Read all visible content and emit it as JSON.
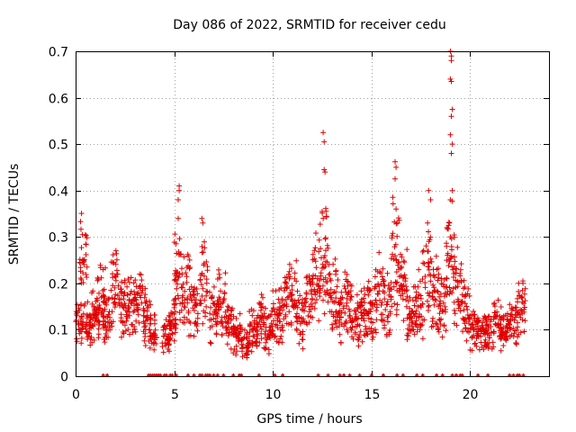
{
  "chart_data": {
    "type": "scatter",
    "title": "Day 086 of 2022, SRMTID for receiver cedu",
    "xlabel": "GPS time / hours",
    "ylabel": "SRMTID / TECUs",
    "xlim": [
      0,
      24
    ],
    "ylim": [
      0,
      0.7
    ],
    "xticks": [
      0,
      5,
      10,
      15,
      20
    ],
    "yticks": [
      0,
      0.1,
      0.2,
      0.3,
      0.4,
      0.5,
      0.6,
      0.7
    ],
    "grid": true,
    "marker": "+",
    "series": [
      {
        "name": "SRMTID",
        "color": "#e00000",
        "cluster_centers": [
          [
            0.2,
            0.13
          ],
          [
            0.4,
            0.24
          ],
          [
            0.7,
            0.1
          ],
          [
            1.0,
            0.14
          ],
          [
            1.3,
            0.16
          ],
          [
            1.6,
            0.12
          ],
          [
            2.0,
            0.19
          ],
          [
            2.4,
            0.14
          ],
          [
            2.8,
            0.15
          ],
          [
            3.2,
            0.17
          ],
          [
            3.6,
            0.13
          ],
          [
            3.9,
            0.09
          ],
          [
            4.6,
            0.08
          ],
          [
            4.9,
            0.12
          ],
          [
            5.2,
            0.22
          ],
          [
            5.6,
            0.18
          ],
          [
            6.0,
            0.15
          ],
          [
            6.5,
            0.2
          ],
          [
            7.0,
            0.14
          ],
          [
            7.4,
            0.16
          ],
          [
            7.8,
            0.11
          ],
          [
            8.2,
            0.09
          ],
          [
            8.6,
            0.07
          ],
          [
            9.0,
            0.1
          ],
          [
            9.4,
            0.12
          ],
          [
            9.8,
            0.1
          ],
          [
            10.2,
            0.13
          ],
          [
            10.6,
            0.15
          ],
          [
            11.0,
            0.17
          ],
          [
            11.4,
            0.12
          ],
          [
            11.8,
            0.16
          ],
          [
            12.2,
            0.21
          ],
          [
            12.6,
            0.24
          ],
          [
            13.0,
            0.17
          ],
          [
            13.4,
            0.14
          ],
          [
            13.8,
            0.16
          ],
          [
            14.2,
            0.12
          ],
          [
            14.6,
            0.13
          ],
          [
            15.0,
            0.14
          ],
          [
            15.4,
            0.18
          ],
          [
            15.8,
            0.15
          ],
          [
            16.2,
            0.26
          ],
          [
            16.6,
            0.19
          ],
          [
            17.0,
            0.13
          ],
          [
            17.4,
            0.16
          ],
          [
            17.8,
            0.22
          ],
          [
            18.2,
            0.18
          ],
          [
            18.6,
            0.15
          ],
          [
            19.0,
            0.26
          ],
          [
            19.4,
            0.2
          ],
          [
            19.8,
            0.14
          ],
          [
            20.2,
            0.1
          ],
          [
            20.6,
            0.1
          ],
          [
            21.0,
            0.09
          ],
          [
            21.4,
            0.11
          ],
          [
            21.8,
            0.1
          ],
          [
            22.2,
            0.12
          ],
          [
            22.6,
            0.15
          ]
        ],
        "spikes": [
          [
            5.25,
            0.41
          ],
          [
            5.25,
            0.4
          ],
          [
            5.2,
            0.38
          ],
          [
            5.2,
            0.34
          ],
          [
            6.4,
            0.34
          ],
          [
            6.45,
            0.33
          ],
          [
            12.55,
            0.525
          ],
          [
            12.6,
            0.505
          ],
          [
            12.6,
            0.445
          ],
          [
            12.65,
            0.44
          ],
          [
            12.5,
            0.355
          ],
          [
            12.55,
            0.34
          ],
          [
            16.2,
            0.462
          ],
          [
            16.25,
            0.45
          ],
          [
            16.2,
            0.425
          ],
          [
            16.25,
            0.36
          ],
          [
            17.9,
            0.4
          ],
          [
            18.0,
            0.38
          ],
          [
            19.0,
            0.7
          ],
          [
            19.05,
            0.69
          ],
          [
            19.05,
            0.68
          ],
          [
            19.0,
            0.64
          ],
          [
            19.05,
            0.635
          ],
          [
            19.1,
            0.575
          ],
          [
            19.05,
            0.56
          ],
          [
            19.0,
            0.52
          ],
          [
            19.1,
            0.5
          ],
          [
            19.05,
            0.48
          ],
          [
            19.1,
            0.4
          ],
          [
            19.0,
            0.38
          ],
          [
            18.95,
            0.33
          ],
          [
            19.0,
            0.3
          ]
        ],
        "zero_level_hours": [
          1.4,
          1.6,
          3.7,
          3.8,
          3.9,
          4.0,
          4.1,
          4.2,
          4.3,
          4.5,
          4.6,
          4.8,
          4.9,
          5.1,
          5.7,
          6.0,
          6.3,
          6.4,
          6.6,
          6.7,
          6.8,
          7.0,
          7.2,
          7.5,
          8.0,
          8.3,
          8.4,
          9.3,
          10.1,
          10.5,
          12.3,
          12.8,
          13.4,
          13.6,
          13.9,
          14.4,
          15.0,
          15.6,
          16.3,
          16.6,
          17.3,
          17.6,
          18.3,
          18.6,
          19.1,
          19.3,
          19.5,
          19.6,
          20.4,
          20.9,
          22.0,
          22.2,
          22.4,
          22.5,
          22.7
        ]
      }
    ]
  }
}
